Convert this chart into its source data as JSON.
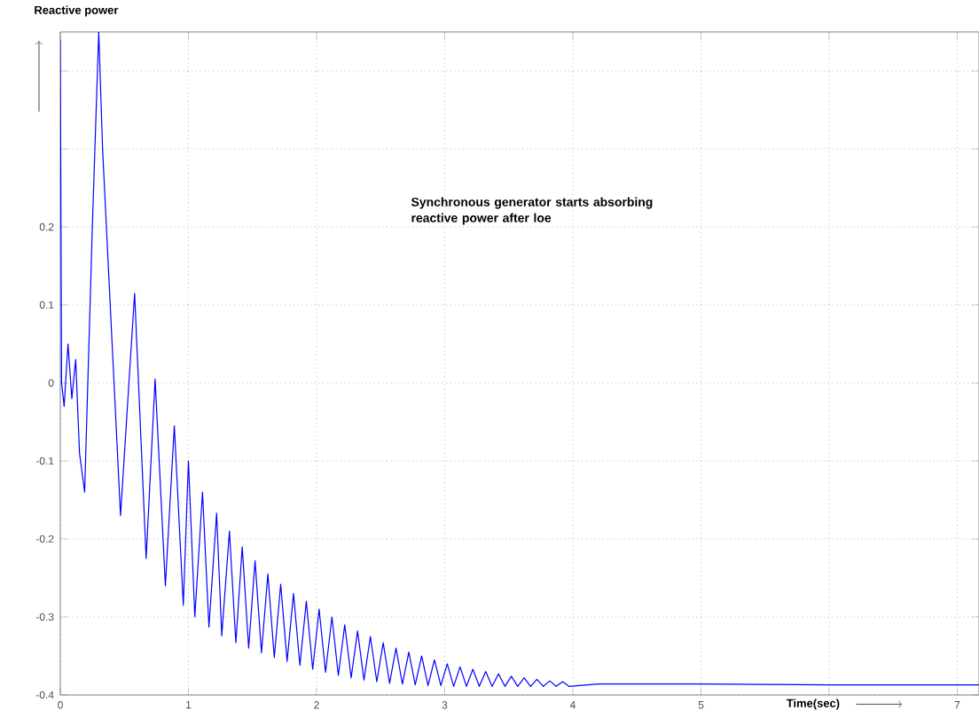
{
  "chart_data": {
    "type": "line",
    "xlabel": "Time(sec)",
    "ylabel": "Reactive power",
    "annotations": [
      "Synchronous generator starts absorbing reactive power after loe"
    ],
    "x": [
      0,
      0.01,
      0.03,
      0.06,
      0.09,
      0.12,
      0.15,
      0.19,
      0.25,
      0.3,
      0.33,
      0.47,
      0.58,
      0.67,
      0.74,
      0.82,
      0.89,
      0.96,
      1.0,
      1.05,
      1.11,
      1.16,
      1.22,
      1.26,
      1.32,
      1.37,
      1.42,
      1.47,
      1.52,
      1.57,
      1.62,
      1.67,
      1.72,
      1.77,
      1.82,
      1.87,
      1.92,
      1.97,
      2.02,
      2.07,
      2.12,
      2.17,
      2.22,
      2.27,
      2.32,
      2.37,
      2.42,
      2.47,
      2.52,
      2.57,
      2.62,
      2.67,
      2.72,
      2.77,
      2.82,
      2.87,
      2.92,
      2.97,
      3.02,
      3.07,
      3.12,
      3.17,
      3.22,
      3.27,
      3.32,
      3.37,
      3.42,
      3.47,
      3.52,
      3.57,
      3.62,
      3.67,
      3.72,
      3.77,
      3.82,
      3.87,
      3.92,
      3.97,
      4.2,
      5.0,
      6.0,
      7.17
    ],
    "series": [
      {
        "color": "#0000ff",
        "values": [
          0.44,
          0.0,
          -0.03,
          0.05,
          -0.02,
          0.03,
          -0.09,
          -0.14,
          0.2,
          0.45,
          0.3,
          -0.17,
          0.115,
          -0.225,
          0.005,
          -0.26,
          -0.055,
          -0.285,
          -0.1,
          -0.3,
          -0.14,
          -0.313,
          -0.167,
          -0.324,
          -0.19,
          -0.333,
          -0.21,
          -0.34,
          -0.228,
          -0.346,
          -0.245,
          -0.352,
          -0.258,
          -0.357,
          -0.27,
          -0.362,
          -0.28,
          -0.367,
          -0.29,
          -0.371,
          -0.3,
          -0.375,
          -0.31,
          -0.378,
          -0.318,
          -0.381,
          -0.325,
          -0.383,
          -0.333,
          -0.385,
          -0.34,
          -0.386,
          -0.345,
          -0.387,
          -0.35,
          -0.388,
          -0.355,
          -0.388,
          -0.36,
          -0.389,
          -0.364,
          -0.389,
          -0.367,
          -0.389,
          -0.37,
          -0.389,
          -0.373,
          -0.389,
          -0.376,
          -0.389,
          -0.378,
          -0.389,
          -0.38,
          -0.389,
          -0.382,
          -0.389,
          -0.383,
          -0.389,
          -0.386,
          -0.386,
          -0.387,
          -0.387
        ]
      }
    ],
    "xlim": [
      0,
      7.17
    ],
    "ylim": [
      -0.4,
      0.45
    ],
    "xticks": [
      0,
      1,
      2,
      3,
      4,
      5,
      {
        "value": 6,
        "label": null
      },
      7
    ],
    "yticks": [
      -0.4,
      -0.3,
      -0.2,
      -0.1,
      0,
      0.1,
      0.2,
      {
        "value": 0.3,
        "label": null
      },
      {
        "value": 0.4,
        "label": null
      }
    ],
    "grid": true,
    "marker": "none",
    "line_style": "solid"
  }
}
